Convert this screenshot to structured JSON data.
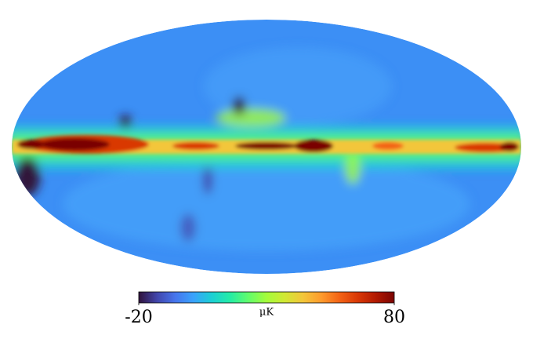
{
  "chart_data": {
    "type": "mollweide",
    "colormap": [
      "#30123b",
      "#4145ab",
      "#4675ed",
      "#39a2fc",
      "#1bcfd4",
      "#24eca6",
      "#61fc6c",
      "#a4fc3b",
      "#d1e834",
      "#f3c63a",
      "#fe9b2d",
      "#f36315",
      "#d93806",
      "#b11901",
      "#7a0402"
    ],
    "colorbar": {
      "label": "μK",
      "min": -20,
      "max": 80,
      "ticks": [
        -20,
        80
      ]
    }
  }
}
